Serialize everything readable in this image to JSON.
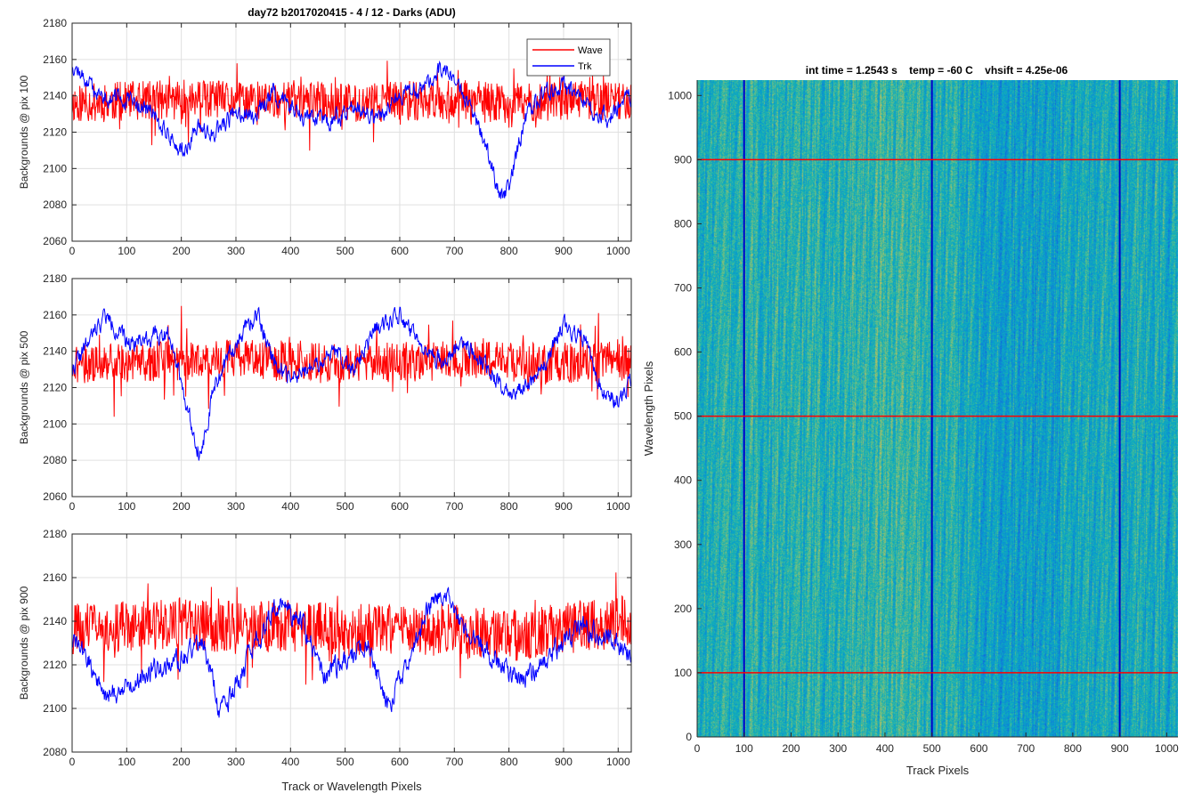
{
  "figure": {
    "suptitle": "day72 b2017020415 - 4 / 12 - Darks (ADU)",
    "legend": {
      "entries": [
        "Wave",
        "Trk"
      ],
      "placement": "top-right"
    },
    "colors": {
      "wave": "#ff0000",
      "trk": "#0000ff",
      "grid": "#e0e0e0",
      "axis": "#262626"
    }
  },
  "chart_data": [
    {
      "type": "line",
      "ylabel": "Backgrounds @ pix 100",
      "xlabel": "",
      "xlim": [
        0,
        1024
      ],
      "ylim": [
        2060,
        2180
      ],
      "xticks": [
        0,
        100,
        200,
        300,
        400,
        500,
        600,
        700,
        800,
        900,
        1000
      ],
      "yticks": [
        2060,
        2080,
        2100,
        2120,
        2140,
        2160,
        2180
      ],
      "grid": true,
      "series": [
        {
          "name": "Wave",
          "color": "#ff0000",
          "mean": 2137,
          "noise": 11,
          "seed": 11,
          "x": [
            0,
            100,
            200,
            300,
            400,
            500,
            600,
            700,
            800,
            900,
            1024
          ],
          "y": [
            2136,
            2137,
            2138,
            2137,
            2138,
            2136,
            2137,
            2138,
            2136,
            2137,
            2138
          ]
        },
        {
          "name": "Trk",
          "color": "#0000ff",
          "noise": 4,
          "seed": 12,
          "x": [
            0,
            20,
            50,
            90,
            120,
            150,
            180,
            200,
            230,
            260,
            300,
            330,
            370,
            420,
            470,
            520,
            560,
            600,
            640,
            680,
            720,
            750,
            770,
            785,
            800,
            830,
            860,
            900,
            940,
            980,
            1024
          ],
          "y": [
            2158,
            2150,
            2140,
            2138,
            2135,
            2130,
            2118,
            2108,
            2122,
            2118,
            2132,
            2128,
            2142,
            2130,
            2125,
            2135,
            2128,
            2140,
            2145,
            2155,
            2140,
            2118,
            2100,
            2085,
            2090,
            2128,
            2140,
            2145,
            2135,
            2128,
            2140
          ]
        }
      ]
    },
    {
      "type": "line",
      "ylabel": "Backgrounds @ pix 500",
      "xlabel": "",
      "xlim": [
        0,
        1024
      ],
      "ylim": [
        2060,
        2180
      ],
      "xticks": [
        0,
        100,
        200,
        300,
        400,
        500,
        600,
        700,
        800,
        900,
        1000
      ],
      "yticks": [
        2060,
        2080,
        2100,
        2120,
        2140,
        2160,
        2180
      ],
      "grid": true,
      "series": [
        {
          "name": "Wave",
          "color": "#ff0000",
          "mean": 2134,
          "noise": 11,
          "seed": 21,
          "x": [
            0,
            100,
            200,
            300,
            400,
            500,
            600,
            700,
            800,
            900,
            1024
          ],
          "y": [
            2133,
            2134,
            2135,
            2136,
            2134,
            2133,
            2134,
            2135,
            2134,
            2133,
            2135
          ]
        },
        {
          "name": "Trk",
          "color": "#0000ff",
          "noise": 4,
          "seed": 22,
          "x": [
            0,
            30,
            60,
            100,
            150,
            180,
            210,
            235,
            260,
            300,
            340,
            370,
            400,
            440,
            480,
            520,
            560,
            600,
            640,
            680,
            720,
            760,
            800,
            830,
            870,
            900,
            940,
            970,
            1000,
            1024
          ],
          "y": [
            2130,
            2145,
            2160,
            2145,
            2148,
            2150,
            2110,
            2082,
            2120,
            2145,
            2160,
            2135,
            2125,
            2130,
            2140,
            2130,
            2155,
            2160,
            2140,
            2135,
            2145,
            2130,
            2118,
            2120,
            2135,
            2155,
            2145,
            2118,
            2112,
            2125
          ]
        }
      ]
    },
    {
      "type": "line",
      "ylabel": "Backgrounds @ pix 900",
      "xlabel": "Track or Wavelength Pixels",
      "xlim": [
        0,
        1024
      ],
      "ylim": [
        2080,
        2180
      ],
      "xticks": [
        0,
        100,
        200,
        300,
        400,
        500,
        600,
        700,
        800,
        900,
        1000
      ],
      "yticks": [
        2080,
        2100,
        2120,
        2140,
        2160,
        2180
      ],
      "grid": true,
      "series": [
        {
          "name": "Wave",
          "color": "#ff0000",
          "mean": 2137,
          "noise": 12,
          "seed": 31,
          "x": [
            0,
            100,
            200,
            300,
            400,
            500,
            600,
            700,
            800,
            900,
            1024
          ],
          "y": [
            2136,
            2138,
            2139,
            2137,
            2138,
            2136,
            2136,
            2136,
            2133,
            2137,
            2140
          ]
        },
        {
          "name": "Trk",
          "color": "#0000ff",
          "noise": 4,
          "seed": 32,
          "x": [
            0,
            30,
            60,
            100,
            150,
            200,
            240,
            270,
            300,
            340,
            380,
            420,
            460,
            500,
            540,
            580,
            620,
            660,
            690,
            710,
            740,
            780,
            820,
            860,
            900,
            940,
            980,
            1024
          ],
          "y": [
            2132,
            2122,
            2105,
            2110,
            2118,
            2122,
            2132,
            2098,
            2110,
            2132,
            2148,
            2140,
            2115,
            2122,
            2130,
            2100,
            2125,
            2150,
            2155,
            2140,
            2130,
            2122,
            2112,
            2120,
            2130,
            2138,
            2132,
            2125
          ]
        }
      ]
    },
    {
      "type": "heatmap",
      "title": "int time = 1.2543 s    temp = -60 C    vhsift = 4.25e-06",
      "xlabel": "Track Pixels",
      "ylabel": "Wavelength Pixels",
      "xlim": [
        0,
        1024
      ],
      "ylim": [
        0,
        1024
      ],
      "xticks": [
        0,
        100,
        200,
        300,
        400,
        500,
        600,
        700,
        800,
        900,
        1000
      ],
      "yticks": [
        0,
        100,
        200,
        300,
        400,
        500,
        600,
        700,
        800,
        900,
        1000
      ],
      "colormap": "parula",
      "markers": {
        "vertical_track_pixels": [
          100,
          500,
          900
        ],
        "horizontal_wavelength_pixels": [
          100,
          500,
          900
        ],
        "vertical_color": "#0000cc",
        "horizontal_color": "#ff0000"
      }
    }
  ]
}
